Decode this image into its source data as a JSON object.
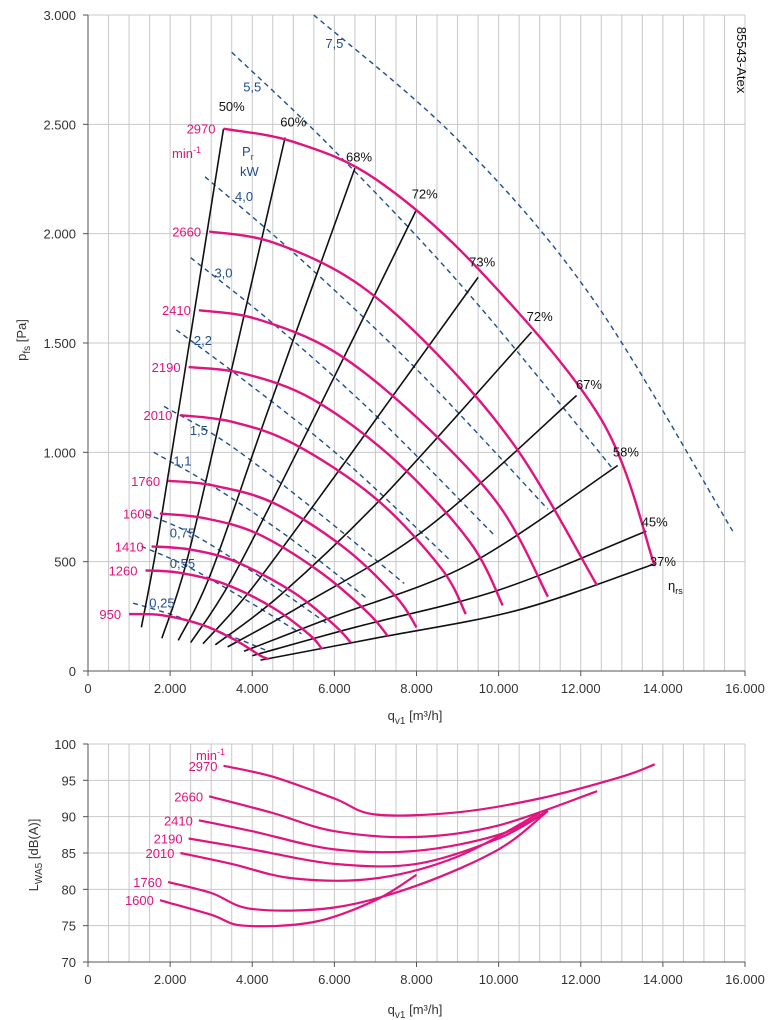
{
  "chart_data": [
    {
      "type": "line",
      "id": "pressure",
      "model_label": "85543-Atex",
      "xlabel_main": "q",
      "xlabel_sub": "v1",
      "xlabel_unit": " [m³/h]",
      "ylabel_main": "p",
      "ylabel_sub": "fs",
      "ylabel_unit": " [Pa]",
      "xlim": [
        0,
        16000
      ],
      "ylim": [
        0,
        3000
      ],
      "x_ticks": [
        0,
        2000,
        4000,
        6000,
        8000,
        10000,
        12000,
        14000,
        16000
      ],
      "x_tick_labels": [
        "0",
        "2.000",
        "4.000",
        "6.000",
        "8.000",
        "10.000",
        "12.000",
        "14.000",
        "16.000"
      ],
      "y_ticks": [
        0,
        500,
        1000,
        1500,
        2000,
        2500,
        3000
      ],
      "y_tick_labels": [
        "0",
        "500",
        "1.000",
        "1.500",
        "2.000",
        "2.500",
        "3.000"
      ],
      "colors": {
        "speed": "#e0137f",
        "efficiency": "#111111",
        "power": "#1f4e8c"
      },
      "speed_unit_label": "min",
      "speed_unit_exp": "-1",
      "power_unit_label_main": "P",
      "power_unit_label_sub": "r",
      "power_unit_label_unit": "kW",
      "eta_label_main": "η",
      "eta_label_sub": "rs",
      "speed_series": [
        {
          "name": "2970",
          "points": [
            [
              3300,
              2480
            ],
            [
              5000,
              2420
            ],
            [
              7000,
              2250
            ],
            [
              9500,
              1840
            ],
            [
              12500,
              1150
            ],
            [
              13800,
              480
            ]
          ]
        },
        {
          "name": "2660",
          "points": [
            [
              2950,
              2010
            ],
            [
              4500,
              1960
            ],
            [
              6500,
              1780
            ],
            [
              8500,
              1450
            ],
            [
              10500,
              1000
            ],
            [
              12400,
              390
            ]
          ]
        },
        {
          "name": "2410",
          "points": [
            [
              2700,
              1650
            ],
            [
              4100,
              1610
            ],
            [
              6000,
              1460
            ],
            [
              8000,
              1160
            ],
            [
              10000,
              760
            ],
            [
              11200,
              340
            ]
          ]
        },
        {
          "name": "2190",
          "points": [
            [
              2450,
              1390
            ],
            [
              3800,
              1360
            ],
            [
              5500,
              1240
            ],
            [
              7500,
              960
            ],
            [
              9300,
              590
            ],
            [
              10100,
              300
            ]
          ]
        },
        {
          "name": "2010",
          "points": [
            [
              2250,
              1170
            ],
            [
              3500,
              1140
            ],
            [
              5000,
              1040
            ],
            [
              7000,
              790
            ],
            [
              8600,
              470
            ],
            [
              9200,
              260
            ]
          ]
        },
        {
          "name": "1760",
          "points": [
            [
              1950,
              870
            ],
            [
              3000,
              850
            ],
            [
              4500,
              770
            ],
            [
              6200,
              570
            ],
            [
              7500,
              340
            ],
            [
              8000,
              200
            ]
          ]
        },
        {
          "name": "1600",
          "points": [
            [
              1750,
              720
            ],
            [
              2800,
              700
            ],
            [
              4100,
              630
            ],
            [
              5600,
              460
            ],
            [
              6800,
              270
            ],
            [
              7300,
              160
            ]
          ]
        },
        {
          "name": "1410",
          "points": [
            [
              1550,
              570
            ],
            [
              2500,
              555
            ],
            [
              3600,
              500
            ],
            [
              5000,
              360
            ],
            [
              6000,
              210
            ],
            [
              6400,
              130
            ]
          ]
        },
        {
          "name": "1260",
          "points": [
            [
              1400,
              460
            ],
            [
              2200,
              450
            ],
            [
              3300,
              400
            ],
            [
              4500,
              290
            ],
            [
              5400,
              165
            ],
            [
              5700,
              100
            ]
          ]
        },
        {
          "name": "950",
          "points": [
            [
              1000,
              260
            ],
            [
              1800,
              255
            ],
            [
              2800,
              210
            ],
            [
              3600,
              140
            ],
            [
              4200,
              70
            ],
            [
              4400,
              55
            ]
          ]
        }
      ],
      "efficiency_series": [
        {
          "name": "50%",
          "points": [
            [
              1300,
              200
            ],
            [
              1700,
              600
            ],
            [
              2300,
              1300
            ],
            [
              3300,
              2480
            ]
          ]
        },
        {
          "name": "60%",
          "points": [
            [
              1800,
              150
            ],
            [
              2400,
              500
            ],
            [
              3400,
              1300
            ],
            [
              4800,
              2440
            ]
          ]
        },
        {
          "name": "68%",
          "points": [
            [
              2200,
              140
            ],
            [
              3000,
              450
            ],
            [
              4400,
              1200
            ],
            [
              6500,
              2300
            ]
          ]
        },
        {
          "name": "72%",
          "points": [
            [
              2500,
              130
            ],
            [
              3500,
              420
            ],
            [
              5300,
              1080
            ],
            [
              8000,
              2110
            ]
          ]
        },
        {
          "name": "73%",
          "points": [
            [
              2800,
              125
            ],
            [
              4000,
              380
            ],
            [
              6200,
              940
            ],
            [
              9500,
              1800
            ]
          ]
        },
        {
          "name": "72%",
          "points": [
            [
              3100,
              120
            ],
            [
              4700,
              350
            ],
            [
              7200,
              800
            ],
            [
              10800,
              1550
            ]
          ]
        },
        {
          "name": "67%",
          "points": [
            [
              3400,
              110
            ],
            [
              5300,
              310
            ],
            [
              8300,
              660
            ],
            [
              11900,
              1260
            ]
          ]
        },
        {
          "name": "58%",
          "points": [
            [
              3800,
              90
            ],
            [
              6000,
              250
            ],
            [
              9300,
              490
            ],
            [
              12900,
              940
            ]
          ]
        },
        {
          "name": "45%",
          "points": [
            [
              4000,
              70
            ],
            [
              6500,
              200
            ],
            [
              10000,
              370
            ],
            [
              13600,
              640
            ]
          ]
        },
        {
          "name": "37%",
          "points": [
            [
              4200,
              50
            ],
            [
              7000,
              150
            ],
            [
              10500,
              280
            ],
            [
              13800,
              490
            ]
          ]
        }
      ],
      "power_series": [
        {
          "name": "7,5",
          "points": [
            [
              5500,
              3000
            ],
            [
              9000,
              2430
            ],
            [
              12300,
              1700
            ],
            [
              15700,
              640
            ]
          ]
        },
        {
          "name": "5,5",
          "points": [
            [
              3500,
              2830
            ],
            [
              6000,
              2380
            ],
            [
              9200,
              1740
            ],
            [
              12800,
              920
            ]
          ]
        },
        {
          "name": "4,0",
          "points": [
            [
              2850,
              2260
            ],
            [
              5200,
              1880
            ],
            [
              8000,
              1380
            ],
            [
              11200,
              740
            ]
          ]
        },
        {
          "name": "3,0",
          "points": [
            [
              2500,
              1890
            ],
            [
              4500,
              1590
            ],
            [
              7000,
              1170
            ],
            [
              9900,
              620
            ]
          ]
        },
        {
          "name": "2,2",
          "points": [
            [
              2150,
              1560
            ],
            [
              3800,
              1330
            ],
            [
              6200,
              970
            ],
            [
              8800,
              510
            ]
          ]
        },
        {
          "name": "1,5",
          "points": [
            [
              1850,
              1210
            ],
            [
              3400,
              1040
            ],
            [
              5500,
              740
            ],
            [
              7700,
              400
            ]
          ]
        },
        {
          "name": "1,1",
          "points": [
            [
              1600,
              1000
            ],
            [
              3000,
              850
            ],
            [
              4900,
              610
            ],
            [
              6800,
              330
            ]
          ]
        },
        {
          "name": "0,75",
          "points": [
            [
              1400,
              720
            ],
            [
              2600,
              620
            ],
            [
              4200,
              430
            ],
            [
              5800,
              220
            ]
          ]
        },
        {
          "name": "0,55",
          "points": [
            [
              1300,
              570
            ],
            [
              2400,
              480
            ],
            [
              3800,
              330
            ],
            [
              5200,
              170
            ]
          ]
        },
        {
          "name": "0,25",
          "points": [
            [
              1100,
              310
            ],
            [
              2000,
              260
            ],
            [
              3200,
              180
            ],
            [
              4400,
              90
            ]
          ]
        }
      ],
      "efficiency_labels": [
        {
          "text": "50%",
          "x": 3500,
          "y": 2560
        },
        {
          "text": "60%",
          "x": 5000,
          "y": 2490
        },
        {
          "text": "68%",
          "x": 6600,
          "y": 2330
        },
        {
          "text": "72%",
          "x": 8200,
          "y": 2160
        },
        {
          "text": "73%",
          "x": 9600,
          "y": 1850
        },
        {
          "text": "72%",
          "x": 11000,
          "y": 1600
        },
        {
          "text": "67%",
          "x": 12200,
          "y": 1290
        },
        {
          "text": "58%",
          "x": 13100,
          "y": 980
        },
        {
          "text": "45%",
          "x": 13800,
          "y": 660
        },
        {
          "text": "37%",
          "x": 14000,
          "y": 480
        }
      ],
      "power_labels": [
        {
          "text": "7,5",
          "x": 6000,
          "y": 2850
        },
        {
          "text": "5,5",
          "x": 4000,
          "y": 2650
        },
        {
          "text": "4,0",
          "x": 3800,
          "y": 2150
        },
        {
          "text": "3,0",
          "x": 3300,
          "y": 1800
        },
        {
          "text": "2,2",
          "x": 2800,
          "y": 1490
        },
        {
          "text": "1,5",
          "x": 2700,
          "y": 1080
        },
        {
          "text": "1,1",
          "x": 2300,
          "y": 940
        },
        {
          "text": "0,75",
          "x": 2300,
          "y": 610
        },
        {
          "text": "0,55",
          "x": 2300,
          "y": 470
        },
        {
          "text": "0,25",
          "x": 1800,
          "y": 290
        }
      ]
    },
    {
      "type": "line",
      "id": "sound",
      "xlabel_main": "q",
      "xlabel_sub": "v1",
      "xlabel_unit": " [m³/h]",
      "ylabel_main": "L",
      "ylabel_sub": "WA5",
      "ylabel_unit": " [dB(A)]",
      "xlim": [
        0,
        16000
      ],
      "ylim": [
        70,
        100
      ],
      "x_ticks": [
        0,
        2000,
        4000,
        6000,
        8000,
        10000,
        12000,
        14000,
        16000
      ],
      "x_tick_labels": [
        "0",
        "2.000",
        "4.000",
        "6.000",
        "8.000",
        "10.000",
        "12.000",
        "14.000",
        "16.000"
      ],
      "y_ticks": [
        70,
        75,
        80,
        85,
        90,
        95,
        100
      ],
      "y_tick_labels": [
        "70",
        "75",
        "80",
        "85",
        "90",
        "95",
        "100"
      ],
      "speed_unit_label": "min",
      "speed_unit_exp": "-1",
      "series": [
        {
          "name": "2970",
          "points": [
            [
              3300,
              97.0
            ],
            [
              4500,
              95.5
            ],
            [
              6000,
              92.5
            ],
            [
              7000,
              90.3
            ],
            [
              9000,
              90.6
            ],
            [
              11000,
              92.5
            ],
            [
              13000,
              95.5
            ],
            [
              13800,
              97.2
            ]
          ]
        },
        {
          "name": "2660",
          "points": [
            [
              2950,
              92.8
            ],
            [
              4500,
              90.5
            ],
            [
              6000,
              88.0
            ],
            [
              8000,
              87.2
            ],
            [
              10000,
              88.8
            ],
            [
              12400,
              93.5
            ]
          ]
        },
        {
          "name": "2410",
          "points": [
            [
              2700,
              89.5
            ],
            [
              4000,
              88.0
            ],
            [
              6000,
              85.5
            ],
            [
              8000,
              85.3
            ],
            [
              10000,
              87.5
            ],
            [
              11200,
              90.8
            ]
          ]
        },
        {
          "name": "2190",
          "points": [
            [
              2450,
              87.0
            ],
            [
              4000,
              85.5
            ],
            [
              6000,
              83.5
            ],
            [
              8000,
              83.5
            ],
            [
              10000,
              87.0
            ],
            [
              11200,
              90.8
            ]
          ]
        },
        {
          "name": "2010",
          "points": [
            [
              2250,
              85.0
            ],
            [
              3500,
              83.5
            ],
            [
              5000,
              81.5
            ],
            [
              7000,
              81.5
            ],
            [
              9000,
              84.5
            ],
            [
              11000,
              90.5
            ]
          ]
        },
        {
          "name": "1760",
          "points": [
            [
              1950,
              81.0
            ],
            [
              3000,
              79.5
            ],
            [
              4000,
              77.3
            ],
            [
              6000,
              77.5
            ],
            [
              8000,
              80.5
            ],
            [
              10000,
              85.5
            ],
            [
              11200,
              90.8
            ]
          ]
        },
        {
          "name": "1600",
          "points": [
            [
              1750,
              78.5
            ],
            [
              3000,
              76.5
            ],
            [
              3800,
              75.0
            ],
            [
              5500,
              75.5
            ],
            [
              7000,
              78.5
            ],
            [
              8000,
              82.0
            ]
          ]
        }
      ]
    }
  ]
}
